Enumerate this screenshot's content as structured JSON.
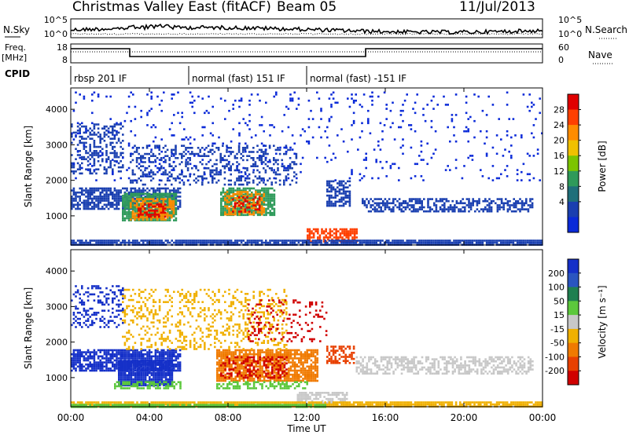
{
  "header": {
    "title": "Christmas Valley East (fitACF)",
    "beam": "Beam 05",
    "date": "11/Jul/2013"
  },
  "strip_labels": {
    "nsky": "N.Sky",
    "nsearch": "N.Search",
    "freq_top": "Freq.",
    "freq_unit": "[MHz]",
    "nave": "Nave",
    "cpid": "CPID"
  },
  "strip_ticks": {
    "noise_left": [
      "10^5",
      "10^0"
    ],
    "noise_right": [
      "10^5",
      "10^0"
    ],
    "freq_left": [
      "18",
      "8"
    ],
    "nave_right": [
      "60",
      "0"
    ]
  },
  "cpid_modes": [
    {
      "label": "rbsp 201 IF",
      "start_hour": 0
    },
    {
      "label": "normal (fast) 151 IF",
      "start_hour": 6
    },
    {
      "label": "normal (fast) -151 IF",
      "start_hour": 12
    }
  ],
  "chart_data": [
    {
      "type": "heatmap",
      "panel": "power",
      "ylabel": "Slant Range [km]",
      "xlabel": "Time UT",
      "x_ticks": [
        "00:00",
        "04:00",
        "08:00",
        "12:00",
        "16:00",
        "20:00",
        "00:00"
      ],
      "xlim_hours": [
        0,
        24
      ],
      "y_ticks": [
        "1000",
        "2000",
        "3000",
        "4000"
      ],
      "ylim_km": [
        180,
        4600
      ],
      "colorbar": {
        "label": "Power [dB]",
        "ticks": [
          "28",
          "24",
          "20",
          "16",
          "12",
          "8",
          "4"
        ],
        "colors": [
          "#e00000",
          "#ff4000",
          "#ff8c00",
          "#f0c000",
          "#7cc400",
          "#2f9a5a",
          "#1f6f7a",
          "#1a3fb0",
          "#0a2ad8"
        ]
      }
    },
    {
      "type": "heatmap",
      "panel": "velocity",
      "ylabel": "Slant Range [km]",
      "xlabel": "Time UT",
      "x_ticks": [
        "00:00",
        "04:00",
        "08:00",
        "12:00",
        "16:00",
        "20:00",
        "00:00"
      ],
      "xlim_hours": [
        0,
        24
      ],
      "y_ticks": [
        "1000",
        "2000",
        "3000",
        "4000"
      ],
      "ylim_km": [
        180,
        4600
      ],
      "colorbar": {
        "label": "Velocity [m s⁻¹]",
        "ticks": [
          "200",
          "100",
          "50",
          "15",
          "-15",
          "-50",
          "-100",
          "-200"
        ],
        "colors": [
          "#1530c8",
          "#2a55c0",
          "#1f7f50",
          "#5cc83c",
          "#c8c8c8",
          "#f0b000",
          "#f07a00",
          "#e84000",
          "#d00000"
        ]
      }
    }
  ],
  "patches": {
    "power": [
      {
        "t0": 0.0,
        "t1": 5.6,
        "r0": 1200,
        "r1": 1800,
        "color": "#1a3fb0",
        "density": 0.7
      },
      {
        "t0": 2.6,
        "t1": 5.4,
        "r0": 850,
        "r1": 1650,
        "color": "#2f9a5a",
        "density": 0.85
      },
      {
        "t0": 3.0,
        "t1": 5.2,
        "r0": 900,
        "r1": 1500,
        "color": "#ff8c00",
        "density": 0.6
      },
      {
        "t0": 3.4,
        "t1": 4.8,
        "r0": 950,
        "r1": 1350,
        "color": "#e00000",
        "density": 0.5
      },
      {
        "t0": 7.6,
        "t1": 10.4,
        "r0": 1000,
        "r1": 1800,
        "color": "#2f9a5a",
        "density": 0.8
      },
      {
        "t0": 7.8,
        "t1": 9.8,
        "r0": 1050,
        "r1": 1700,
        "color": "#ff8c00",
        "density": 0.55
      },
      {
        "t0": 8.2,
        "t1": 9.6,
        "r0": 1100,
        "r1": 1550,
        "color": "#e00000",
        "density": 0.4
      },
      {
        "t0": 12.0,
        "t1": 14.5,
        "r0": 300,
        "r1": 650,
        "color": "#ff4000",
        "density": 0.7
      },
      {
        "t0": 13.0,
        "t1": 14.2,
        "r0": 1300,
        "r1": 2000,
        "color": "#1a3fb0",
        "density": 0.6
      },
      {
        "t0": 14.8,
        "t1": 23.5,
        "r0": 1100,
        "r1": 1500,
        "color": "#1a3fb0",
        "density": 0.55
      },
      {
        "t0": 0.0,
        "t1": 2.6,
        "r0": 2200,
        "r1": 3600,
        "color": "#1a3fb0",
        "density": 0.35
      },
      {
        "t0": 3.0,
        "t1": 11.5,
        "r0": 1900,
        "r1": 3000,
        "color": "#1a3fb0",
        "density": 0.3
      },
      {
        "t0": 0.0,
        "t1": 24.0,
        "r0": 180,
        "r1": 330,
        "color": "#1a3fb0",
        "density": 0.9
      },
      {
        "t0": 0.0,
        "t1": 24.0,
        "r0": 2000,
        "r1": 4500,
        "color": "#0a2ad8",
        "density": 0.05
      }
    ],
    "velocity": [
      {
        "t0": 0.0,
        "t1": 5.6,
        "r0": 1200,
        "r1": 1800,
        "color": "#1530c8",
        "density": 0.75
      },
      {
        "t0": 2.4,
        "t1": 5.2,
        "r0": 800,
        "r1": 1500,
        "color": "#1530c8",
        "density": 0.95
      },
      {
        "t0": 2.2,
        "t1": 5.6,
        "r0": 700,
        "r1": 900,
        "color": "#5cc83c",
        "density": 0.6
      },
      {
        "t0": 7.4,
        "t1": 12.6,
        "r0": 900,
        "r1": 1800,
        "color": "#f07a00",
        "density": 0.8
      },
      {
        "t0": 7.6,
        "t1": 11.0,
        "r0": 1000,
        "r1": 1600,
        "color": "#d00000",
        "density": 0.35
      },
      {
        "t0": 7.4,
        "t1": 12.0,
        "r0": 700,
        "r1": 900,
        "color": "#5cc83c",
        "density": 0.5
      },
      {
        "t0": 11.5,
        "t1": 14.0,
        "r0": 300,
        "r1": 600,
        "color": "#c8c8c8",
        "density": 0.7
      },
      {
        "t0": 13.0,
        "t1": 14.4,
        "r0": 1400,
        "r1": 1900,
        "color": "#e84000",
        "density": 0.6
      },
      {
        "t0": 14.5,
        "t1": 23.5,
        "r0": 1100,
        "r1": 1600,
        "color": "#c8c8c8",
        "density": 0.55
      },
      {
        "t0": 0.0,
        "t1": 24.0,
        "r0": 180,
        "r1": 330,
        "color": "#f0b000",
        "density": 0.9
      },
      {
        "t0": 0.0,
        "t1": 13.0,
        "r0": 180,
        "r1": 260,
        "color": "#5cc83c",
        "density": 0.9
      },
      {
        "t0": 0.0,
        "t1": 2.6,
        "r0": 2400,
        "r1": 3600,
        "color": "#1530c8",
        "density": 0.3
      },
      {
        "t0": 2.6,
        "t1": 11.0,
        "r0": 1800,
        "r1": 3500,
        "color": "#f0b000",
        "density": 0.25
      },
      {
        "t0": 9.0,
        "t1": 13.0,
        "r0": 2000,
        "r1": 3200,
        "color": "#d00000",
        "density": 0.15
      }
    ]
  }
}
